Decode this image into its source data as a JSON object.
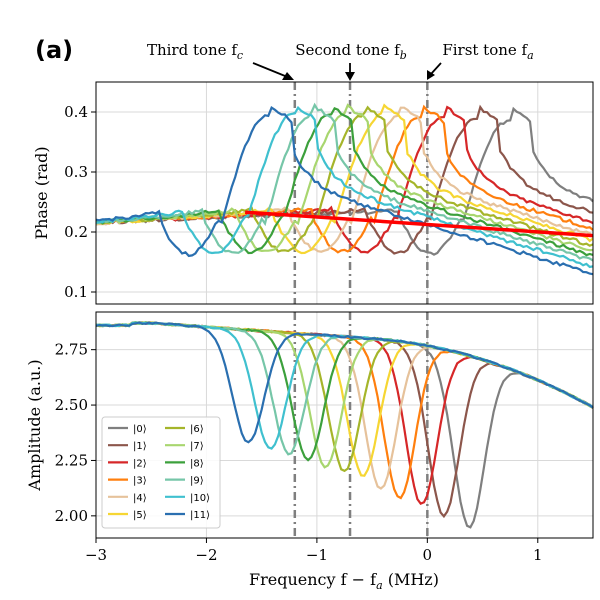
{
  "figure": {
    "panel_label": "(a)"
  },
  "annotations": [
    {
      "key": "third",
      "text": "Third tone f",
      "sub": "c",
      "x": -1.2
    },
    {
      "key": "second",
      "text": "Second tone f",
      "sub": "b",
      "x": -0.7
    },
    {
      "key": "first",
      "text": "First tone f",
      "sub": "a",
      "x": 0.0
    }
  ],
  "chart_data": [
    {
      "id": "phase",
      "type": "line",
      "ylabel": "Phase (rad)",
      "xlim": [
        -3,
        1.5
      ],
      "ylim": [
        0.08,
        0.45
      ],
      "xticks": [
        -3,
        -2,
        -1,
        0,
        1
      ],
      "yticks": [
        0.1,
        0.2,
        0.3,
        0.4
      ],
      "ytick_labels": [
        "0.1",
        "0.2",
        "0.3",
        "0.4"
      ],
      "grid": true,
      "vlines": [
        -1.2,
        -0.7,
        0.0
      ],
      "series": [
        {
          "name": "|0⟩",
          "color": "#7f7f7f",
          "center": 0.6
        },
        {
          "name": "|1⟩",
          "color": "#8c564b",
          "center": 0.3
        },
        {
          "name": "|2⟩",
          "color": "#d62728",
          "center": 0.0
        },
        {
          "name": "|3⟩",
          "color": "#ff7f0e",
          "center": -0.2
        },
        {
          "name": "|4⟩",
          "color": "#e6c29b",
          "center": -0.4
        },
        {
          "name": "|5⟩",
          "color": "#f6d633",
          "center": -0.55
        },
        {
          "name": "|6⟩",
          "color": "#a5b52a",
          "center": -0.72
        },
        {
          "name": "|7⟩",
          "color": "#a8d66f",
          "center": -0.88
        },
        {
          "name": "|8⟩",
          "color": "#3ca03c",
          "center": -1.02
        },
        {
          "name": "|9⟩",
          "color": "#76c6a8",
          "center": -1.18
        },
        {
          "name": "|10⟩",
          "color": "#3fc0cf",
          "center": -1.35
        },
        {
          "name": "|11⟩",
          "color": "#2a6fb0",
          "center": -1.58
        }
      ],
      "fit_line": {
        "color": "#ff0000",
        "x": [
          -1.65,
          1.5
        ],
        "y": [
          0.233,
          0.194
        ]
      }
    },
    {
      "id": "amplitude",
      "type": "line",
      "ylabel": "Amplitude (a.u.)",
      "xlabel": "Frequency f − f",
      "xlabel_sub": "a",
      "xlabel_unit": " (MHz)",
      "xlim": [
        -3,
        1.5
      ],
      "ylim": [
        1.9,
        2.92
      ],
      "xticks": [
        -3,
        -2,
        -1,
        0,
        1
      ],
      "xtick_labels": [
        "−3",
        "−2",
        "−1",
        "0",
        "1"
      ],
      "yticks": [
        2.0,
        2.25,
        2.5,
        2.75
      ],
      "ytick_labels": [
        "2.00",
        "2.25",
        "2.50",
        "2.75"
      ],
      "grid": true,
      "vlines": [
        -1.2,
        -0.7,
        0.0
      ],
      "legend": "lower-left",
      "series": [
        {
          "name": "|0⟩",
          "color": "#7f7f7f",
          "center": 0.38,
          "min": 1.95
        },
        {
          "name": "|1⟩",
          "color": "#8c564b",
          "center": 0.15,
          "min": 2.0
        },
        {
          "name": "|2⟩",
          "color": "#d62728",
          "center": -0.05,
          "min": 2.05
        },
        {
          "name": "|3⟩",
          "color": "#ff7f0e",
          "center": -0.25,
          "min": 2.08
        },
        {
          "name": "|4⟩",
          "color": "#e6c29b",
          "center": -0.42,
          "min": 2.12
        },
        {
          "name": "|5⟩",
          "color": "#f6d633",
          "center": -0.58,
          "min": 2.18
        },
        {
          "name": "|6⟩",
          "color": "#a5b52a",
          "center": -0.75,
          "min": 2.2
        },
        {
          "name": "|7⟩",
          "color": "#a8d66f",
          "center": -0.92,
          "min": 2.22
        },
        {
          "name": "|8⟩",
          "color": "#3ca03c",
          "center": -1.08,
          "min": 2.25
        },
        {
          "name": "|9⟩",
          "color": "#76c6a8",
          "center": -1.25,
          "min": 2.28
        },
        {
          "name": "|10⟩",
          "color": "#3fc0cf",
          "center": -1.42,
          "min": 2.3
        },
        {
          "name": "|11⟩",
          "color": "#2a6fb0",
          "center": -1.62,
          "min": 2.33
        }
      ]
    }
  ]
}
